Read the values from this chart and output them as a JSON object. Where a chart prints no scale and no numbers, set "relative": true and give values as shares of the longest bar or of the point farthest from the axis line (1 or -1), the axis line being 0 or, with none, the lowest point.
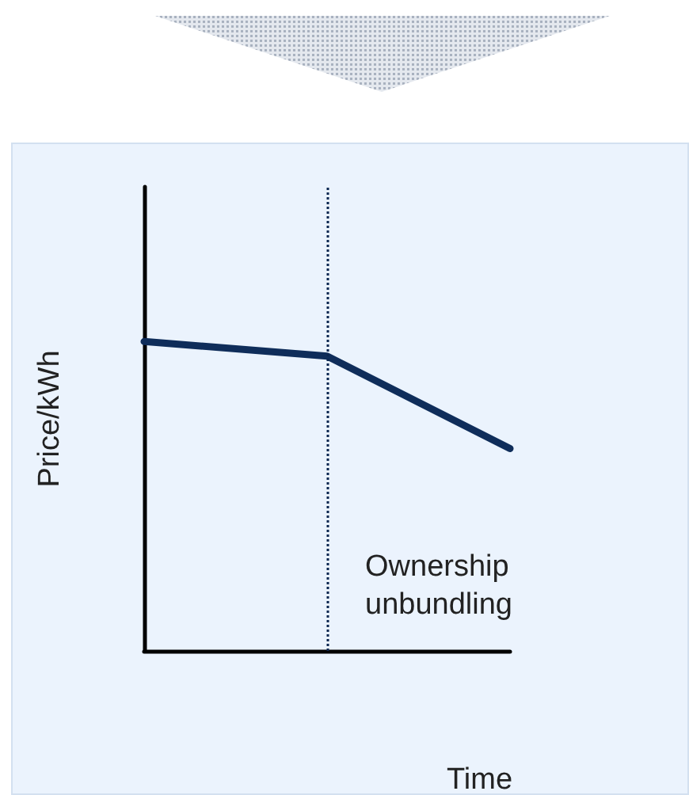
{
  "chart_data": {
    "type": "line",
    "relative": true,
    "xlabel": "Time",
    "ylabel": "Price/kWh",
    "categories": [
      null,
      null,
      null
    ],
    "series": [
      {
        "color": "#0f2d5a",
        "values": [
          1,
          0.953,
          0.654
        ]
      }
    ],
    "annotations": [
      "Ownership\nunbundling"
    ],
    "grid": false,
    "marker": "none",
    "line_style": "solid"
  }
}
